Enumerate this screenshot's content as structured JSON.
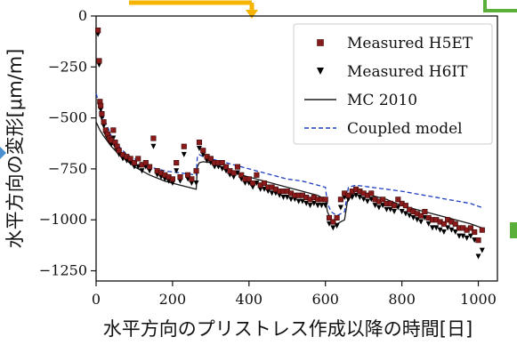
{
  "chart_data": {
    "type": "line",
    "xlabel": "水平方向のプリストレス作成以降の時間[日]",
    "ylabel": "水平方向の変形[μm/m]",
    "xlim": [
      0,
      1050
    ],
    "ylim": [
      -1300,
      0
    ],
    "xticks": [
      0,
      200,
      400,
      600,
      800,
      1000
    ],
    "yticks": [
      0,
      -250,
      -500,
      -750,
      -1000,
      -1250
    ],
    "grid": false,
    "legend_position": "top-right",
    "series": [
      {
        "name": "Measured H5ET",
        "style": "scatter-square",
        "color": "#8b1a1a",
        "x": [
          5,
          8,
          10,
          12,
          15,
          20,
          25,
          30,
          35,
          40,
          45,
          50,
          55,
          60,
          70,
          80,
          90,
          100,
          110,
          120,
          130,
          140,
          150,
          160,
          170,
          180,
          190,
          200,
          210,
          220,
          230,
          240,
          250,
          262,
          270,
          280,
          290,
          300,
          310,
          320,
          330,
          340,
          350,
          360,
          370,
          380,
          390,
          400,
          410,
          420,
          430,
          440,
          450,
          460,
          470,
          480,
          490,
          500,
          510,
          520,
          530,
          540,
          550,
          560,
          570,
          580,
          590,
          600,
          610,
          620,
          630,
          640,
          650,
          660,
          670,
          680,
          690,
          700,
          710,
          720,
          730,
          740,
          750,
          760,
          770,
          780,
          790,
          800,
          810,
          820,
          830,
          840,
          850,
          860,
          870,
          880,
          890,
          900,
          910,
          920,
          930,
          940,
          950,
          960,
          970,
          980,
          990,
          1000,
          1010
        ],
        "y": [
          -70,
          -220,
          -420,
          -440,
          -480,
          -520,
          -560,
          -580,
          -600,
          -610,
          -560,
          -620,
          -640,
          -660,
          -680,
          -690,
          -700,
          -720,
          -700,
          -730,
          -720,
          -740,
          -600,
          -760,
          -770,
          -780,
          -790,
          -800,
          -720,
          -790,
          -640,
          -780,
          -800,
          -760,
          -620,
          -660,
          -690,
          -700,
          -720,
          -720,
          -720,
          -740,
          -760,
          -770,
          -740,
          -780,
          -800,
          -800,
          -820,
          -780,
          -830,
          -820,
          -840,
          -840,
          -850,
          -860,
          -860,
          -860,
          -870,
          -880,
          -880,
          -880,
          -890,
          -900,
          -890,
          -900,
          -900,
          -900,
          -990,
          -1010,
          -990,
          -900,
          -870,
          -880,
          -860,
          -850,
          -860,
          -870,
          -880,
          -870,
          -900,
          -910,
          -900,
          -920,
          -920,
          -930,
          -900,
          -920,
          -930,
          -950,
          -960,
          -970,
          -980,
          -960,
          -990,
          -1000,
          -1000,
          -1010,
          -1020,
          -1000,
          -1010,
          -1020,
          -1040,
          -1040,
          -1050,
          -1040,
          -1060,
          -1100,
          -1050
        ]
      },
      {
        "name": "Measured H6IT",
        "style": "scatter-triangle-down",
        "color": "#000000",
        "x": [
          5,
          8,
          10,
          12,
          15,
          20,
          25,
          30,
          35,
          40,
          45,
          50,
          55,
          60,
          70,
          80,
          90,
          100,
          110,
          120,
          130,
          140,
          150,
          160,
          170,
          180,
          190,
          200,
          210,
          220,
          230,
          240,
          250,
          262,
          270,
          280,
          290,
          300,
          310,
          320,
          330,
          340,
          350,
          360,
          370,
          380,
          390,
          400,
          410,
          420,
          430,
          440,
          450,
          460,
          470,
          480,
          490,
          500,
          510,
          520,
          530,
          540,
          550,
          560,
          570,
          580,
          590,
          600,
          610,
          620,
          630,
          640,
          650,
          660,
          670,
          680,
          690,
          700,
          710,
          720,
          730,
          740,
          750,
          760,
          770,
          780,
          790,
          800,
          810,
          820,
          830,
          840,
          850,
          860,
          870,
          880,
          890,
          900,
          910,
          920,
          930,
          940,
          950,
          960,
          970,
          980,
          990,
          1000,
          1010
        ],
        "y": [
          -90,
          -240,
          -440,
          -460,
          -500,
          -540,
          -580,
          -600,
          -620,
          -630,
          -600,
          -640,
          -660,
          -680,
          -700,
          -710,
          -720,
          -740,
          -740,
          -760,
          -740,
          -760,
          -640,
          -780,
          -790,
          -800,
          -810,
          -820,
          -760,
          -810,
          -680,
          -800,
          -820,
          -820,
          -650,
          -680,
          -710,
          -720,
          -740,
          -740,
          -750,
          -760,
          -780,
          -790,
          -770,
          -800,
          -820,
          -820,
          -840,
          -820,
          -850,
          -850,
          -860,
          -870,
          -870,
          -880,
          -890,
          -890,
          -900,
          -900,
          -910,
          -910,
          -920,
          -930,
          -920,
          -930,
          -930,
          -930,
          -1020,
          -1040,
          -1030,
          -940,
          -890,
          -900,
          -890,
          -880,
          -890,
          -900,
          -910,
          -900,
          -930,
          -940,
          -930,
          -950,
          -950,
          -960,
          -940,
          -960,
          -970,
          -980,
          -990,
          -1000,
          -1010,
          -990,
          -1020,
          -1040,
          -1040,
          -1050,
          -1060,
          -1040,
          -1050,
          -1060,
          -1080,
          -1080,
          -1090,
          -1080,
          -1100,
          -1180,
          -1150
        ]
      },
      {
        "name": "MC 2010",
        "style": "line-solid",
        "color": "#1a1a1a",
        "x": [
          0,
          10,
          20,
          40,
          60,
          80,
          100,
          140,
          180,
          220,
          262,
          265,
          270,
          280,
          300,
          340,
          380,
          420,
          460,
          500,
          540,
          580,
          600,
          605,
          615,
          630,
          650,
          660,
          680,
          720,
          760,
          800,
          860,
          920,
          980,
          1010
        ],
        "y": [
          -520,
          -560,
          -590,
          -640,
          -680,
          -710,
          -740,
          -780,
          -810,
          -830,
          -850,
          -740,
          -720,
          -715,
          -720,
          -750,
          -780,
          -800,
          -820,
          -840,
          -860,
          -880,
          -900,
          -960,
          -1000,
          -1020,
          -1000,
          -880,
          -870,
          -880,
          -900,
          -930,
          -960,
          -990,
          -1020,
          -1040
        ]
      },
      {
        "name": "Coupled model",
        "style": "line-dashed",
        "color": "#1f3fbf",
        "x": [
          0,
          10,
          20,
          40,
          60,
          80,
          100,
          140,
          180,
          220,
          262,
          265,
          270,
          280,
          300,
          340,
          380,
          420,
          460,
          500,
          540,
          580,
          600,
          605,
          615,
          630,
          650,
          660,
          680,
          720,
          760,
          800,
          860,
          920,
          980,
          1010
        ],
        "y": [
          -380,
          -440,
          -500,
          -590,
          -640,
          -680,
          -700,
          -740,
          -760,
          -770,
          -780,
          -690,
          -680,
          -690,
          -700,
          -720,
          -740,
          -760,
          -780,
          -800,
          -810,
          -830,
          -840,
          -920,
          -960,
          -980,
          -960,
          -840,
          -830,
          -840,
          -850,
          -860,
          -880,
          -900,
          -920,
          -940
        ]
      }
    ]
  },
  "decorations": {
    "top_arrow_color": "#f5b400",
    "corner_bracket_color": "#5aae3a",
    "right_marker_color": "#5aae3a",
    "left_marker_color": "#4a8fd0"
  }
}
